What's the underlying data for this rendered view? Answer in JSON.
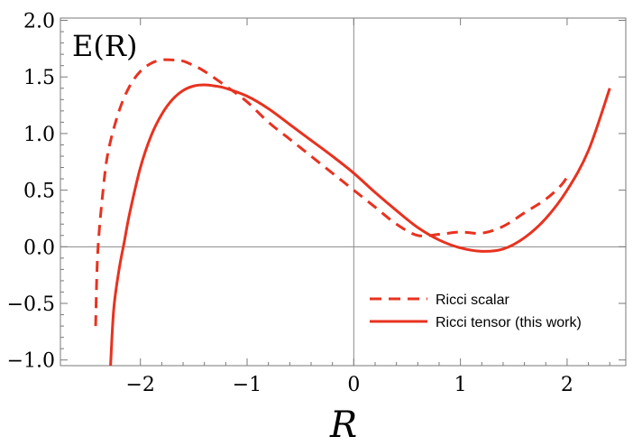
{
  "chart_data": {
    "type": "line",
    "title": "",
    "xlabel": "R",
    "ylabel": "E(R)",
    "xlim": [
      -2.75,
      2.55
    ],
    "ylim": [
      -1.05,
      2.02
    ],
    "x_ticks": [
      -2,
      -1,
      0,
      1,
      2
    ],
    "x_tick_labels": [
      "−2",
      "−1",
      "0",
      "1",
      "2"
    ],
    "y_ticks": [
      -1.0,
      -0.5,
      0.0,
      0.5,
      1.0,
      1.5,
      2.0
    ],
    "y_tick_labels": [
      "−1.0",
      "−0.5",
      "0.0",
      "0.5",
      "1.0",
      "1.5",
      "2.0"
    ],
    "grid": false,
    "zero_lines": true,
    "legend_position": "bottom-right",
    "series": [
      {
        "name": "Ricci scalar",
        "style": "dashed",
        "color": "#e8321f",
        "x": [
          -2.42,
          -2.4,
          -2.35,
          -2.3,
          -2.2,
          -2.1,
          -2.0,
          -1.9,
          -1.8,
          -1.7,
          -1.6,
          -1.5,
          -1.4,
          -1.2,
          -1.0,
          -0.8,
          -0.6,
          -0.4,
          -0.2,
          0.0,
          0.2,
          0.4,
          0.6,
          0.8,
          1.0,
          1.2,
          1.4,
          1.6,
          1.8,
          1.95,
          2.02
        ],
        "y": [
          -0.7,
          -0.05,
          0.5,
          0.85,
          1.2,
          1.42,
          1.55,
          1.62,
          1.65,
          1.65,
          1.64,
          1.6,
          1.55,
          1.42,
          1.28,
          1.1,
          0.95,
          0.8,
          0.65,
          0.5,
          0.35,
          0.2,
          0.1,
          0.11,
          0.13,
          0.12,
          0.18,
          0.3,
          0.42,
          0.55,
          0.65
        ]
      },
      {
        "name": "Ricci tensor (this work)",
        "style": "solid",
        "color": "#e8321f",
        "x": [
          -2.28,
          -2.25,
          -2.2,
          -2.15,
          -2.1,
          -2.0,
          -1.9,
          -1.8,
          -1.7,
          -1.6,
          -1.5,
          -1.4,
          -1.3,
          -1.2,
          -1.0,
          -0.8,
          -0.6,
          -0.4,
          -0.2,
          0.0,
          0.2,
          0.4,
          0.6,
          0.8,
          1.0,
          1.2,
          1.4,
          1.6,
          1.8,
          2.0,
          2.2,
          2.4
        ],
        "y": [
          -1.05,
          -0.55,
          -0.2,
          0.05,
          0.3,
          0.7,
          0.98,
          1.17,
          1.3,
          1.38,
          1.42,
          1.43,
          1.42,
          1.4,
          1.33,
          1.22,
          1.08,
          0.94,
          0.8,
          0.65,
          0.48,
          0.32,
          0.17,
          0.06,
          -0.01,
          -0.04,
          -0.02,
          0.08,
          0.25,
          0.5,
          0.85,
          1.4
        ]
      }
    ]
  }
}
